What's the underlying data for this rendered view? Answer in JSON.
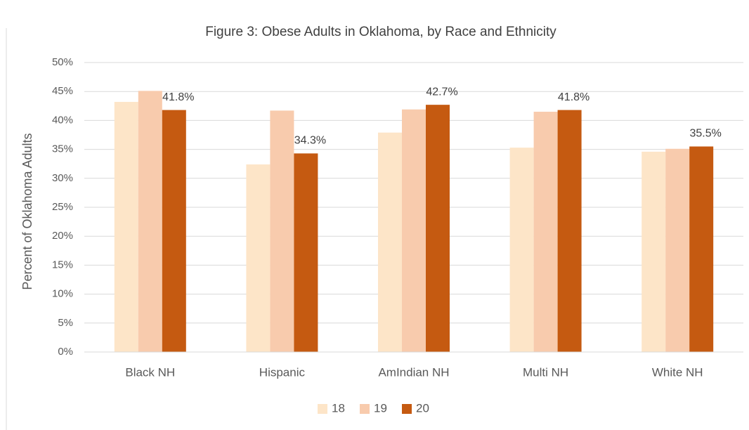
{
  "chart_data": {
    "type": "bar",
    "title": "Figure 3: Obese Adults in Oklahoma, by Race and Ethnicity",
    "y_label": "Percent of Oklahoma Adults",
    "categories": [
      "Black NH",
      "Hispanic",
      "AmIndian NH",
      "Multi NH",
      "White NH"
    ],
    "series": [
      {
        "name": "18",
        "color": "#fde5c8",
        "values": [
          43.2,
          32.4,
          37.9,
          35.3,
          34.6
        ]
      },
      {
        "name": "19",
        "color": "#f8cbad",
        "values": [
          45.1,
          41.7,
          41.9,
          41.5,
          35.1
        ]
      },
      {
        "name": "20",
        "color": "#c55a11",
        "values": [
          41.8,
          34.3,
          42.7,
          41.8,
          35.5
        ],
        "value_labels": [
          "41.8%",
          "34.3%",
          "42.7%",
          "41.8%",
          "35.5%"
        ]
      }
    ],
    "ylim": [
      0,
      50
    ],
    "yticks": [
      {
        "value": 0,
        "label": "0%"
      },
      {
        "value": 5,
        "label": "5%"
      },
      {
        "value": 10,
        "label": "10%"
      },
      {
        "value": 15,
        "label": "15%"
      },
      {
        "value": 20,
        "label": "20%"
      },
      {
        "value": 25,
        "label": "25%"
      },
      {
        "value": 30,
        "label": "30%"
      },
      {
        "value": 35,
        "label": "35%"
      },
      {
        "value": 40,
        "label": "40%"
      },
      {
        "value": 45,
        "label": "45%"
      },
      {
        "value": 50,
        "label": "50%"
      }
    ],
    "grid": true,
    "legend": "bottom"
  }
}
